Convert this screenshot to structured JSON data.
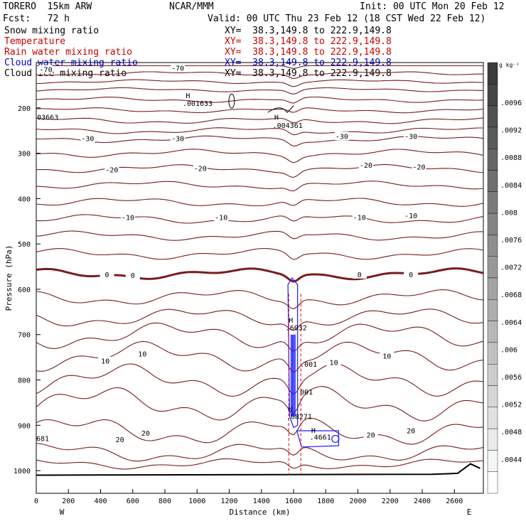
{
  "header": {
    "model": "TORERO  15km ARW",
    "center": "NCAR/MMM",
    "init": "Init: 00 UTC Mon 20 Feb 12",
    "fcst": "Fcst:   72 h",
    "valid": "Valid: 00 UTC Thu 23 Feb 12 (18 CST Wed 22 Feb 12)"
  },
  "legend": [
    {
      "name": "Snow mixing ratio",
      "xy": "XY=  38.3,149.8 to 222.9,149.8",
      "color": "#000000"
    },
    {
      "name": "Temperature",
      "xy": "XY=  38.3,149.8 to 222.9,149.8",
      "color": "#cc0000"
    },
    {
      "name": "Rain water mixing ratio",
      "xy": "XY=  38.3,149.8 to 222.9,149.8",
      "color": "#cc0000"
    },
    {
      "name": "Cloud water mixing ratio",
      "xy": "XY=  38.3,149.8 to 222.9,149.8",
      "color": "#0000cc"
    },
    {
      "name": "Cloud ice mixing ratio",
      "xy": "XY=  38.3,149.8 to 222.9,149.8",
      "color": "#000000"
    }
  ],
  "chart_data": {
    "type": "cross-section",
    "xlabel": "Distance (km)",
    "ylabel": "Pressure (hPa)",
    "x_ticks": [
      0,
      200,
      400,
      600,
      800,
      1000,
      1200,
      1400,
      1600,
      1800,
      2000,
      2200,
      2400,
      2600
    ],
    "y_ticks": [
      200,
      300,
      400,
      500,
      600,
      700,
      800,
      900,
      1000
    ],
    "xlim": [
      0,
      2780
    ],
    "ylim": [
      100,
      1050
    ],
    "x_end_labels": {
      "left": "W",
      "right": "E"
    },
    "colorbar": {
      "unit": "g kg⁻¹",
      "ticks": [
        ".0096",
        ".0092",
        ".0088",
        ".0084",
        ".008",
        ".0076",
        ".0072",
        ".0068",
        ".0064",
        ".006",
        ".0056",
        ".0052",
        ".0048",
        ".0044"
      ]
    },
    "temperature_labels": [
      {
        "text": "-70",
        "x": 60,
        "p": 115
      },
      {
        "text": "-70",
        "x": 880,
        "p": 112
      },
      {
        "text": "-30",
        "x": 320,
        "p": 267
      },
      {
        "text": "-30",
        "x": 880,
        "p": 267
      },
      {
        "text": "-30",
        "x": 1900,
        "p": 262
      },
      {
        "text": "-30",
        "x": 2330,
        "p": 262
      },
      {
        "text": "-20",
        "x": 470,
        "p": 336
      },
      {
        "text": "-20",
        "x": 1020,
        "p": 333
      },
      {
        "text": "-20",
        "x": 2050,
        "p": 326
      },
      {
        "text": "-20",
        "x": 2380,
        "p": 330
      },
      {
        "text": "-10",
        "x": 570,
        "p": 441
      },
      {
        "text": "-10",
        "x": 1150,
        "p": 441
      },
      {
        "text": "-10",
        "x": 2010,
        "p": 441
      },
      {
        "text": "-10",
        "x": 2330,
        "p": 437
      },
      {
        "text": "0",
        "x": 440,
        "p": 567
      },
      {
        "text": "0",
        "x": 600,
        "p": 569
      },
      {
        "text": "0",
        "x": 2010,
        "p": 567
      },
      {
        "text": "0",
        "x": 2330,
        "p": 567
      },
      {
        "text": "10",
        "x": 430,
        "p": 758
      },
      {
        "text": "10",
        "x": 660,
        "p": 742
      },
      {
        "text": "10",
        "x": 1850,
        "p": 761
      },
      {
        "text": "10",
        "x": 2180,
        "p": 747
      },
      {
        "text": "20",
        "x": 520,
        "p": 931
      },
      {
        "text": "20",
        "x": 680,
        "p": 917
      },
      {
        "text": "20",
        "x": 2080,
        "p": 921
      },
      {
        "text": "20",
        "x": 2330,
        "p": 911
      }
    ],
    "annotations": [
      {
        "text": "H",
        "x": 930,
        "p": 178,
        "color": "#000000"
      },
      {
        "text": ".001633",
        "x": 910,
        "p": 196,
        "color": "#000000"
      },
      {
        "text": "03663",
        "x": 5,
        "p": 226,
        "color": "#000000"
      },
      {
        "text": "H",
        "x": 1480,
        "p": 226,
        "color": "#000000"
      },
      {
        "text": ".004361",
        "x": 1470,
        "p": 244,
        "color": "#000000"
      },
      {
        "text": "H",
        "x": 1570,
        "p": 674,
        "color": "#0000cc"
      },
      {
        "text": ".6032",
        "x": 1550,
        "p": 690,
        "color": "#0000cc"
      },
      {
        "text": ".001",
        "x": 1640,
        "p": 771,
        "color": "#0000cc"
      },
      {
        "text": "001",
        "x": 1640,
        "p": 832,
        "color": "#cc0000"
      },
      {
        "text": "H",
        "x": 1565,
        "p": 870,
        "color": "#cc0000"
      },
      {
        "text": ".08271",
        "x": 1555,
        "p": 886,
        "color": "#cc0000"
      },
      {
        "text": "H",
        "x": 1710,
        "p": 917,
        "color": "#0000cc"
      },
      {
        "text": ".4661",
        "x": 1700,
        "p": 932,
        "color": "#0000cc"
      },
      {
        "text": "681",
        "x": 0,
        "p": 935,
        "color": "#0000cc"
      }
    ],
    "temperature_profiles": [
      {
        "p0": 107,
        "amp": 0
      },
      {
        "p0": 124,
        "amp": 3
      },
      {
        "p0": 142,
        "amp": 3
      },
      {
        "p0": 160,
        "amp": 3
      },
      {
        "p0": 182,
        "amp": 4
      },
      {
        "p0": 205,
        "amp": 4
      },
      {
        "p0": 228,
        "amp": 5
      },
      {
        "p0": 250,
        "amp": 5
      },
      {
        "p0": 269,
        "amp": 5
      },
      {
        "p0": 300,
        "amp": 6
      },
      {
        "p0": 334,
        "amp": 6
      },
      {
        "p0": 370,
        "amp": 6
      },
      {
        "p0": 408,
        "amp": 7
      },
      {
        "p0": 445,
        "amp": 7
      },
      {
        "p0": 482,
        "amp": 7
      },
      {
        "p0": 522,
        "amp": 8
      },
      {
        "p0": 566,
        "amp": 8,
        "bold": true
      },
      {
        "p0": 618,
        "amp": 12
      },
      {
        "p0": 662,
        "amp": 15
      },
      {
        "p0": 702,
        "amp": 20
      },
      {
        "p0": 748,
        "amp": 22
      },
      {
        "p0": 800,
        "amp": 24
      },
      {
        "p0": 852,
        "amp": 26
      },
      {
        "p0": 912,
        "amp": 22
      },
      {
        "p0": 960,
        "amp": 15
      },
      {
        "p0": 985,
        "amp": 8
      }
    ]
  }
}
